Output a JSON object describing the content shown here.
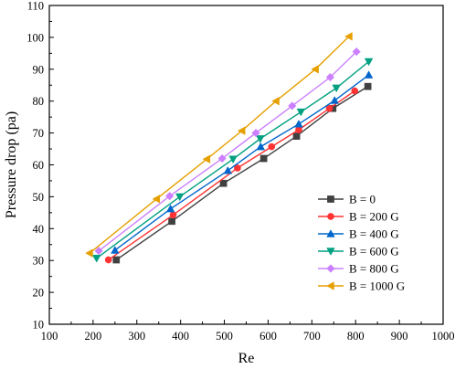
{
  "chart_data": {
    "type": "line",
    "title": "",
    "xlabel": "Re",
    "ylabel": "Pressure drop (pa)",
    "xlim": [
      100,
      1000
    ],
    "ylim": [
      10,
      110
    ],
    "xticks": [
      100,
      200,
      300,
      400,
      500,
      600,
      700,
      800,
      900,
      1000
    ],
    "yticks": [
      10,
      20,
      30,
      40,
      50,
      60,
      70,
      80,
      90,
      100,
      110
    ],
    "grid": false,
    "legend_position": "lower-right",
    "series": [
      {
        "name": "B = 0",
        "color": "#404040",
        "marker": "square",
        "x": [
          253,
          380,
          498,
          590,
          665,
          748,
          828
        ],
        "y": [
          30.2,
          42.3,
          54.2,
          62.0,
          69.0,
          77.7,
          84.6
        ]
      },
      {
        "name": "B = 200 G",
        "color": "#ff3333",
        "marker": "circle",
        "x": [
          235,
          383,
          530,
          608,
          670,
          740,
          798
        ],
        "y": [
          30.2,
          44.3,
          59.0,
          65.7,
          71.0,
          77.7,
          83.2
        ]
      },
      {
        "name": "B = 400 G",
        "color": "#0066cc",
        "marker": "triangle-up",
        "x": [
          250,
          377,
          508,
          583,
          670,
          752,
          830
        ],
        "y": [
          33.2,
          46.2,
          58.2,
          65.7,
          72.8,
          80.2,
          88.2
        ]
      },
      {
        "name": "B = 600 G",
        "color": "#00a080",
        "marker": "triangle-down",
        "x": [
          208,
          398,
          520,
          582,
          675,
          756,
          830
        ],
        "y": [
          30.7,
          50.0,
          61.8,
          68.2,
          76.6,
          84.1,
          92.4
        ]
      },
      {
        "name": "B = 800 G",
        "color": "#cc80ff",
        "marker": "diamond",
        "x": [
          213,
          375,
          495,
          572,
          655,
          742,
          802
        ],
        "y": [
          33.0,
          50.2,
          62.0,
          70.0,
          78.5,
          87.5,
          95.5
        ]
      },
      {
        "name": "B = 1000 G",
        "color": "#e6a000",
        "marker": "triangle-left",
        "x": [
          192,
          345,
          460,
          540,
          618,
          708,
          785
        ],
        "y": [
          32.3,
          49.3,
          61.8,
          70.7,
          80.0,
          90.0,
          100.3
        ]
      }
    ]
  }
}
